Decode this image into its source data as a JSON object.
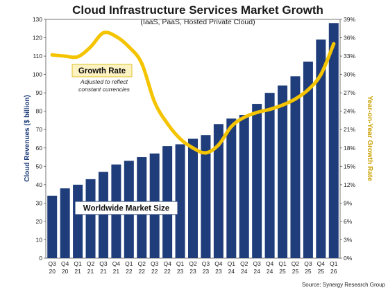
{
  "chart_data": {
    "type": "bar",
    "title": "Cloud Infrastructure Services Market Growth",
    "subtitle": "(IaaS, PaaS, Hosted Private Cloud)",
    "ylabel": "Cloud Revenues ($ billion)",
    "y2label": "Year-on-Year Growth Rate",
    "ylim": [
      0,
      130
    ],
    "y2lim": [
      0,
      39
    ],
    "y_ticks": [
      "0",
      "10",
      "20",
      "30",
      "40",
      "50",
      "60",
      "70",
      "80",
      "90",
      "100",
      "110",
      "120",
      "130"
    ],
    "y2_ticks": [
      "0%",
      "3%",
      "6%",
      "9%",
      "12%",
      "15%",
      "18%",
      "21%",
      "24%",
      "27%",
      "30%",
      "33%",
      "36%",
      "39%"
    ],
    "grid": false,
    "categories": [
      {
        "q": "Q3",
        "y": "20"
      },
      {
        "q": "Q4",
        "y": "20"
      },
      {
        "q": "Q1",
        "y": "21"
      },
      {
        "q": "Q2",
        "y": "21"
      },
      {
        "q": "Q3",
        "y": "21"
      },
      {
        "q": "Q4",
        "y": "21"
      },
      {
        "q": "Q1",
        "y": "22"
      },
      {
        "q": "Q2",
        "y": "22"
      },
      {
        "q": "Q3",
        "y": "22"
      },
      {
        "q": "Q4",
        "y": "22"
      },
      {
        "q": "Q1",
        "y": "23"
      },
      {
        "q": "Q2",
        "y": "23"
      },
      {
        "q": "Q3",
        "y": "23"
      },
      {
        "q": "Q4",
        "y": "23"
      },
      {
        "q": "Q1",
        "y": "24"
      },
      {
        "q": "Q2",
        "y": "24"
      },
      {
        "q": "Q3",
        "y": "24"
      },
      {
        "q": "Q4",
        "y": "24"
      },
      {
        "q": "Q1",
        "y": "25"
      },
      {
        "q": "Q2",
        "y": "25"
      },
      {
        "q": "Q3",
        "y": "25"
      },
      {
        "q": "Q4",
        "y": "25"
      },
      {
        "q": "Q1",
        "y": "26"
      }
    ],
    "series": [
      {
        "name": "Worldwide Market Size",
        "kind": "bar",
        "axis": "left",
        "color": "#1f3d7a",
        "values": [
          34,
          38,
          40,
          43,
          47,
          51,
          53,
          55,
          57,
          61,
          62,
          65,
          67,
          73,
          76,
          78,
          84,
          90,
          94,
          99,
          107,
          119,
          128
        ]
      },
      {
        "name": "Growth Rate",
        "kind": "line",
        "axis": "right",
        "color": "#f5c400",
        "values": [
          33.2,
          33.0,
          32.9,
          34.5,
          36.8,
          36.2,
          34.5,
          31.8,
          25.5,
          22.0,
          19.5,
          18.0,
          17.2,
          18.5,
          21.5,
          23.0,
          23.8,
          24.3,
          25.0,
          26.0,
          27.5,
          30.0,
          35.0
        ]
      }
    ],
    "annotations": {
      "growth_title": "Growth Rate",
      "growth_note_1": "Adjusted to reflect",
      "growth_note_2": "constant currencies",
      "market_label": "Worldwide Market Size"
    },
    "source": "Source: Synergy Research Group",
    "colors": {
      "bar": "#1f3d7a",
      "line": "#f5c400",
      "label_box": "#fdf2c2",
      "market_box": "#ffffff"
    }
  }
}
